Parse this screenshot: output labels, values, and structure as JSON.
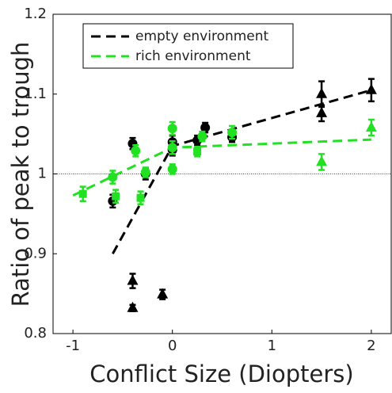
{
  "chart_data": {
    "type": "scatter",
    "xlabel": "Conflict Size (Diopters)",
    "ylabel": "Ratio of peak to trough",
    "xlim": [
      -1.2,
      2.2
    ],
    "ylim": [
      0.8,
      1.2
    ],
    "xticks": [
      -1,
      0,
      1,
      2
    ],
    "yticks": [
      0.8,
      0.9,
      1,
      1.1,
      1.2
    ],
    "reference_line": 1,
    "legend": "upper left",
    "series": [
      {
        "name": "empty environment",
        "color": "#000000",
        "x": [
          -0.6,
          0,
          2
        ],
        "values": [
          0.9,
          1.035,
          1.105
        ]
      },
      {
        "name": "rich environment",
        "color": "#22e022",
        "x": [
          -1,
          0,
          2
        ],
        "values": [
          0.973,
          1.033,
          1.043
        ]
      }
    ],
    "points": [
      {
        "color": "#000000",
        "marker": "circle",
        "x": [
          -0.6,
          -0.4,
          -0.27,
          0,
          0,
          0.25,
          0.33,
          0.6
        ],
        "values": [
          0.966,
          1.038,
          1.0,
          1.04,
          1.03,
          1.042,
          1.058,
          1.046
        ],
        "errors": [
          0.008,
          0.007,
          0.007,
          0.008,
          0.007,
          0.006,
          0.006,
          0.006
        ]
      },
      {
        "color": "#000000",
        "marker": "triangle",
        "x": [
          -0.4,
          -0.4,
          -0.1,
          1.5,
          1.5,
          2
        ],
        "values": [
          0.866,
          0.832,
          0.849,
          1.1,
          1.076,
          1.105
        ],
        "errors": [
          0.009,
          0.004,
          0.006,
          0.016,
          0.01,
          0.014
        ]
      },
      {
        "color": "#22e022",
        "marker": "circle",
        "x": [
          -0.6,
          -0.37,
          -0.27,
          0,
          0,
          0,
          0.3,
          0.6
        ],
        "values": [
          0.996,
          1.029,
          1.002,
          1.057,
          1.033,
          1.006,
          1.047,
          1.052
        ],
        "errors": [
          0.008,
          0.007,
          0.006,
          0.008,
          0.008,
          0.006,
          0.006,
          0.008
        ]
      },
      {
        "color": "#22e022",
        "marker": "square",
        "x": [
          -0.9,
          -0.57,
          -0.32,
          0.25
        ],
        "values": [
          0.975,
          0.972,
          0.97,
          1.028
        ],
        "errors": [
          0.009,
          0.008,
          0.008,
          0.006
        ]
      },
      {
        "color": "#22e022",
        "marker": "triangle",
        "x": [
          1.5,
          2
        ],
        "values": [
          1.015,
          1.058
        ],
        "errors": [
          0.01,
          0.01
        ]
      }
    ]
  }
}
